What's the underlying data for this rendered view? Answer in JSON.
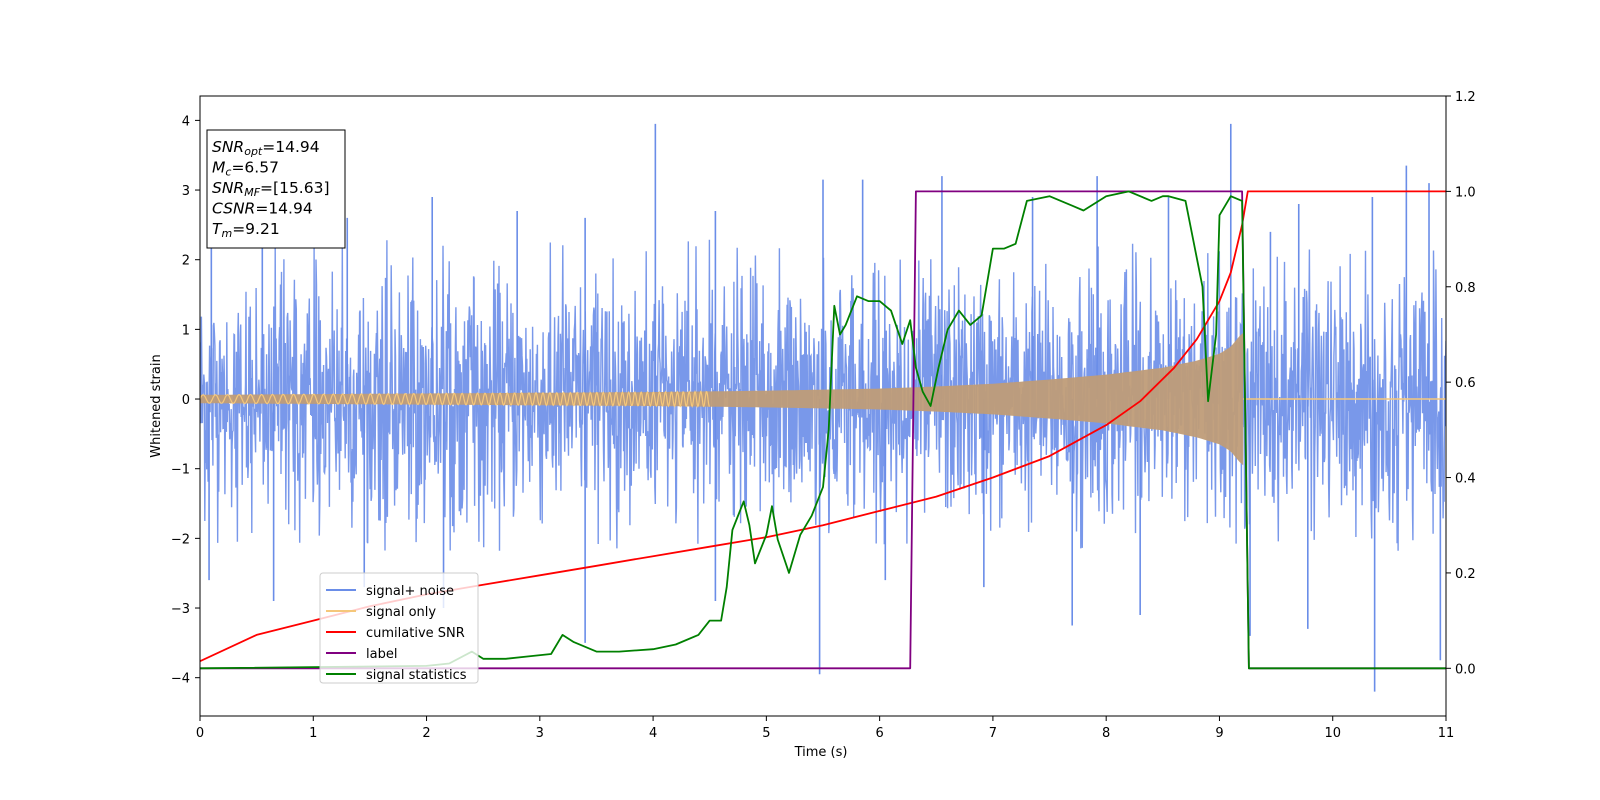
{
  "chart_data": {
    "type": "line",
    "xlabel": "Time (s)",
    "ylabel": "Whitened strain",
    "xlim": [
      0,
      11
    ],
    "ylim": [
      -4.55,
      4.35
    ],
    "y2lim": [
      -0.1,
      1.2
    ],
    "xticks": [
      "0",
      "1",
      "2",
      "3",
      "4",
      "5",
      "6",
      "7",
      "8",
      "9",
      "10",
      "11"
    ],
    "yticks": [
      "−4",
      "−3",
      "−2",
      "−1",
      "0",
      "1",
      "2",
      "3",
      "4"
    ],
    "y2ticks": [
      "0.0",
      "0.2",
      "0.4",
      "0.6",
      "0.8",
      "1.0",
      "1.2"
    ],
    "legend_placement": "lower-left",
    "info_box": [
      {
        "sym": "SNR",
        "sub": "opt",
        "val": "=14.94"
      },
      {
        "sym": "M",
        "sub": "c",
        "val": "=6.57"
      },
      {
        "sym": "SNR",
        "sub": "MF",
        "val": "=[15.63]"
      },
      {
        "sym": "CSNR",
        "sub": "",
        "val": "=14.94"
      },
      {
        "sym": "T",
        "sub": "m",
        "val": "=9.21"
      }
    ],
    "colors": {
      "signal_noise": "#6a8de8",
      "signal_only": "#f5c77a",
      "signal_overlap": "#bf9c78",
      "cumulative_snr": "#ff0000",
      "label": "#800080",
      "signal_statistics": "#008000"
    },
    "series": [
      {
        "name": "signal+ noise",
        "axis": "left",
        "description_values": "band spanning about −2.2 to 2.3 with spikes to ±4",
        "x_range": [
          0,
          11
        ],
        "band": [
          -2.2,
          2.3
        ],
        "spikes_up": [
          [
            0.1,
            2.7
          ],
          [
            0.55,
            2.6
          ],
          [
            1.3,
            2.6
          ],
          [
            2.05,
            2.9
          ],
          [
            2.8,
            2.7
          ],
          [
            3.4,
            2.6
          ],
          [
            4.02,
            3.95
          ],
          [
            4.55,
            2.7
          ],
          [
            5.5,
            3.15
          ],
          [
            5.85,
            3.15
          ],
          [
            6.55,
            3.2
          ],
          [
            7.35,
            2.9
          ],
          [
            7.92,
            3.2
          ],
          [
            8.55,
            2.9
          ],
          [
            9.1,
            3.95
          ],
          [
            9.45,
            2.4
          ],
          [
            9.7,
            2.8
          ],
          [
            10.35,
            2.9
          ],
          [
            10.65,
            3.35
          ],
          [
            10.85,
            3.1
          ]
        ],
        "spikes_down": [
          [
            0.08,
            -2.6
          ],
          [
            0.65,
            -2.9
          ],
          [
            1.45,
            -2.7
          ],
          [
            2.15,
            -3.0
          ],
          [
            3.4,
            -3.5
          ],
          [
            4.55,
            -2.9
          ],
          [
            5.47,
            -3.95
          ],
          [
            6.05,
            -2.6
          ],
          [
            6.92,
            -2.7
          ],
          [
            7.7,
            -3.25
          ],
          [
            8.3,
            -3.1
          ],
          [
            9.27,
            -3.4
          ],
          [
            9.78,
            -3.3
          ],
          [
            10.37,
            -4.2
          ],
          [
            10.95,
            -3.75
          ]
        ]
      },
      {
        "name": "signal only",
        "axis": "left",
        "x_range": [
          0,
          9.21
        ],
        "envelope": [
          [
            0,
            0.06
          ],
          [
            1,
            0.07
          ],
          [
            2,
            0.08
          ],
          [
            3,
            0.09
          ],
          [
            4,
            0.1
          ],
          [
            5,
            0.12
          ],
          [
            6,
            0.15
          ],
          [
            6.5,
            0.18
          ],
          [
            7,
            0.22
          ],
          [
            7.5,
            0.28
          ],
          [
            8,
            0.35
          ],
          [
            8.5,
            0.45
          ],
          [
            8.8,
            0.55
          ],
          [
            9.0,
            0.65
          ],
          [
            9.1,
            0.75
          ],
          [
            9.2,
            0.95
          ]
        ]
      },
      {
        "name": "cumilative SNR",
        "axis": "right",
        "x": [
          0,
          0.5,
          1,
          1.5,
          2,
          2.5,
          3,
          3.5,
          4,
          4.5,
          5,
          5.5,
          6,
          6.5,
          7,
          7.5,
          8,
          8.3,
          8.6,
          8.8,
          9.0,
          9.1,
          9.2,
          9.25,
          11
        ],
        "values": [
          0.015,
          0.07,
          0.1,
          0.13,
          0.155,
          0.175,
          0.195,
          0.215,
          0.235,
          0.255,
          0.275,
          0.3,
          0.33,
          0.36,
          0.4,
          0.445,
          0.51,
          0.56,
          0.63,
          0.69,
          0.77,
          0.83,
          0.93,
          1.0,
          1.0
        ]
      },
      {
        "name": "label",
        "axis": "right",
        "x": [
          0,
          6.27,
          6.32,
          9.2,
          9.26,
          11
        ],
        "values": [
          0,
          0,
          1,
          1,
          0,
          0
        ]
      },
      {
        "name": "signal statistics",
        "axis": "right",
        "x": [
          0,
          2.0,
          2.2,
          2.4,
          2.5,
          2.7,
          2.9,
          3.1,
          3.2,
          3.3,
          3.5,
          3.7,
          4.0,
          4.2,
          4.4,
          4.5,
          4.6,
          4.65,
          4.7,
          4.8,
          4.85,
          4.9,
          5.0,
          5.05,
          5.1,
          5.2,
          5.3,
          5.4,
          5.5,
          5.55,
          5.6,
          5.65,
          5.7,
          5.8,
          5.9,
          6.0,
          6.1,
          6.2,
          6.27,
          6.32,
          6.38,
          6.45,
          6.52,
          6.6,
          6.7,
          6.8,
          6.9,
          7.0,
          7.1,
          7.2,
          7.3,
          7.5,
          7.7,
          7.8,
          8.0,
          8.2,
          8.4,
          8.5,
          8.55,
          8.7,
          8.85,
          8.9,
          8.97,
          9.0,
          9.1,
          9.2,
          9.26,
          9.5,
          11
        ],
        "values": [
          0.0,
          0.005,
          0.01,
          0.035,
          0.02,
          0.02,
          0.025,
          0.03,
          0.07,
          0.055,
          0.035,
          0.035,
          0.04,
          0.05,
          0.07,
          0.1,
          0.1,
          0.17,
          0.29,
          0.35,
          0.3,
          0.22,
          0.28,
          0.34,
          0.27,
          0.2,
          0.28,
          0.32,
          0.38,
          0.5,
          0.76,
          0.7,
          0.72,
          0.78,
          0.77,
          0.77,
          0.75,
          0.68,
          0.73,
          0.63,
          0.58,
          0.55,
          0.63,
          0.71,
          0.75,
          0.72,
          0.74,
          0.88,
          0.88,
          0.89,
          0.98,
          0.99,
          0.97,
          0.96,
          0.99,
          1.0,
          0.98,
          0.99,
          0.99,
          0.98,
          0.8,
          0.56,
          0.7,
          0.95,
          0.99,
          0.98,
          0.0,
          0.0,
          0.0
        ]
      }
    ]
  }
}
